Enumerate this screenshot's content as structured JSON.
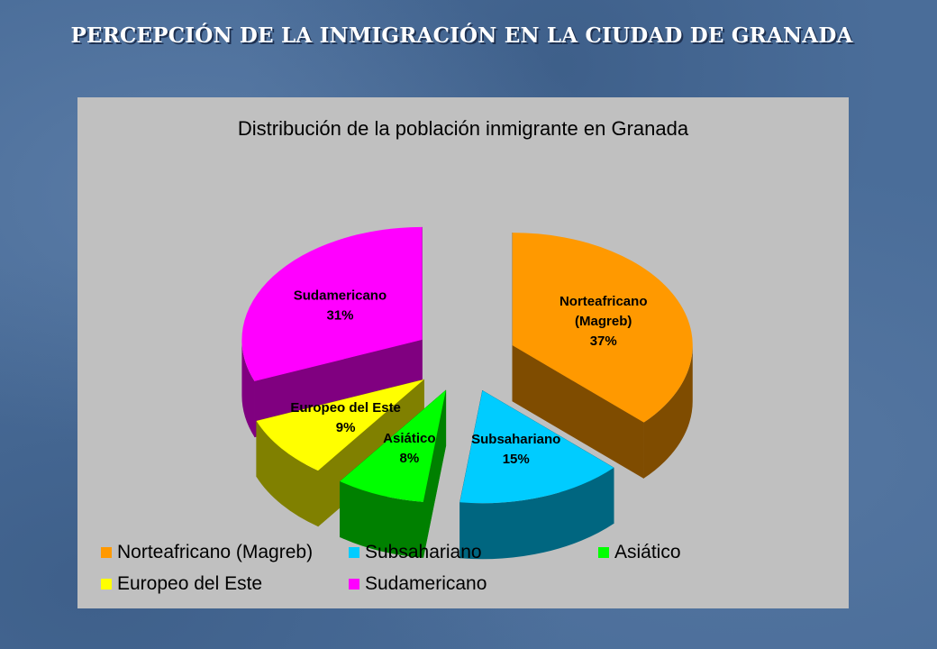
{
  "slide": {
    "title": "PERCEPCIÓN DE LA INMIGRACIÓN EN LA CIUDAD DE GRANADA"
  },
  "chart_data": {
    "type": "pie",
    "title": "Distribución de la población inmigrante en Granada",
    "three_d": true,
    "exploded": true,
    "legend_placement": "bottom",
    "slices": [
      {
        "name": "Norteafricano (Magreb)",
        "label_lines": [
          "Norteafricano",
          "(Magreb)"
        ],
        "value": 37,
        "value_label": "37%",
        "color": "#ff9900",
        "side_color": "#7f4c00"
      },
      {
        "name": "Subsahariano",
        "label_lines": [
          "Subsahariano"
        ],
        "value": 15,
        "value_label": "15%",
        "color": "#00ccff",
        "side_color": "#006680"
      },
      {
        "name": "Asiático",
        "label_lines": [
          "Asiático"
        ],
        "value": 8,
        "value_label": "8%",
        "color": "#00ff00",
        "side_color": "#008000"
      },
      {
        "name": "Europeo del Este",
        "label_lines": [
          "Europeo del Este"
        ],
        "value": 9,
        "value_label": "9%",
        "color": "#ffff00",
        "side_color": "#808000"
      },
      {
        "name": "Sudamericano",
        "label_lines": [
          "Sudamericano"
        ],
        "value": 31,
        "value_label": "31%",
        "color": "#ff00ff",
        "side_color": "#800080"
      }
    ]
  }
}
